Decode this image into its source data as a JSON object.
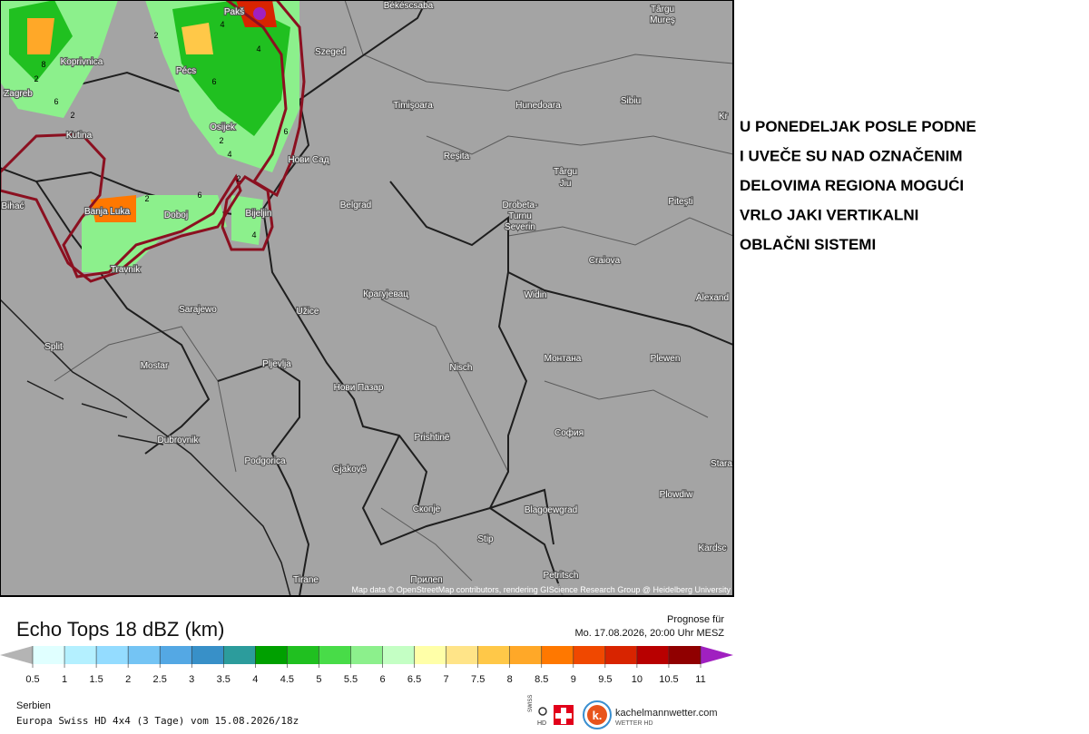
{
  "map": {
    "labels": [
      "Békéscsaba",
      "Pakš",
      "Târgu",
      "Mureş",
      "Szeged",
      "Koprivnica",
      "Pécs",
      "Zagreb",
      "Timișoara",
      "Hunedoara",
      "Sibiu",
      "Kr",
      "Osijek",
      "Kutina",
      "Нови Сад",
      "Reșita",
      "Târgu",
      "Jiu",
      "Pitești",
      "Bihać",
      "Banja Luka",
      "Doboj",
      "Bijeljin",
      "Belgrad",
      "Drobeta-",
      "Turnu",
      "Severin",
      "Craiova",
      "Travnik",
      "Крагујевац",
      "Widin",
      "Alexand",
      "Sarajewo",
      "Užice",
      "Split",
      "Mostar",
      "Pljevlja",
      "Монтана",
      "Plewen",
      "Нови Пазар",
      "Nisch",
      "Prishtinë",
      "София",
      "Dubrovnik",
      "Podgorica",
      "Gjakovë",
      "Stara",
      "Plowdiw",
      "Скопје",
      "Blagoewgrad",
      "Stip",
      "Kardsc",
      "Petritsch",
      "Tirane",
      "Прилеп"
    ],
    "contour_labels": [
      "8",
      "2",
      "6",
      "4",
      "2",
      "6",
      "4",
      "2",
      "6",
      "2",
      "4",
      "2",
      "2",
      "4",
      "6"
    ],
    "attribution": "Map data © OpenStreetMap contributors, rendering GIScience Research Group @ Heidelberg University"
  },
  "note": {
    "lines": [
      "U PONEDELJAK POSLE PODNE",
      "I UVEČE SU NAD OZNAČENIM",
      "DELOVIMA REGIONA MOGUĆI",
      "VRLO JAKI VERTIKALNI",
      "OBLAČNI SISTEMI"
    ]
  },
  "legend": {
    "title": "Echo Tops 18 dBZ (km)",
    "forecast_label": "Prognose für",
    "forecast_time": "Mo. 17.08.2026, 20:00 Uhr MESZ",
    "ticks": [
      0.5,
      1,
      1.5,
      2,
      2.5,
      3,
      3.5,
      4,
      4.5,
      5,
      5.5,
      6,
      6.5,
      7,
      7.5,
      8,
      8.5,
      9,
      9.5,
      10,
      10.5,
      11
    ],
    "colors": [
      "#e0ffff",
      "#b4f0ff",
      "#94dcff",
      "#74c4f4",
      "#54a8e4",
      "#3890c8",
      "#2c9c9c",
      "#00a000",
      "#20c020",
      "#48dc48",
      "#8cf08c",
      "#c4ffc4",
      "#ffffa8",
      "#ffe488",
      "#ffc848",
      "#ffa828",
      "#ff7800",
      "#f04800",
      "#d82400",
      "#b80000",
      "#900000"
    ],
    "under_color": "#b4b4b4",
    "over_color": "#a020c0"
  },
  "footer": {
    "region": "Serbien",
    "model": "Europa Swiss HD 4x4 (3 Tage) vom 15.08.2026/18z",
    "swiss": "SWISS",
    "hd": "HD",
    "brand": "kachelmannwetter.com",
    "brand_sub": "WETTER HD",
    "logo_letter": "k."
  }
}
